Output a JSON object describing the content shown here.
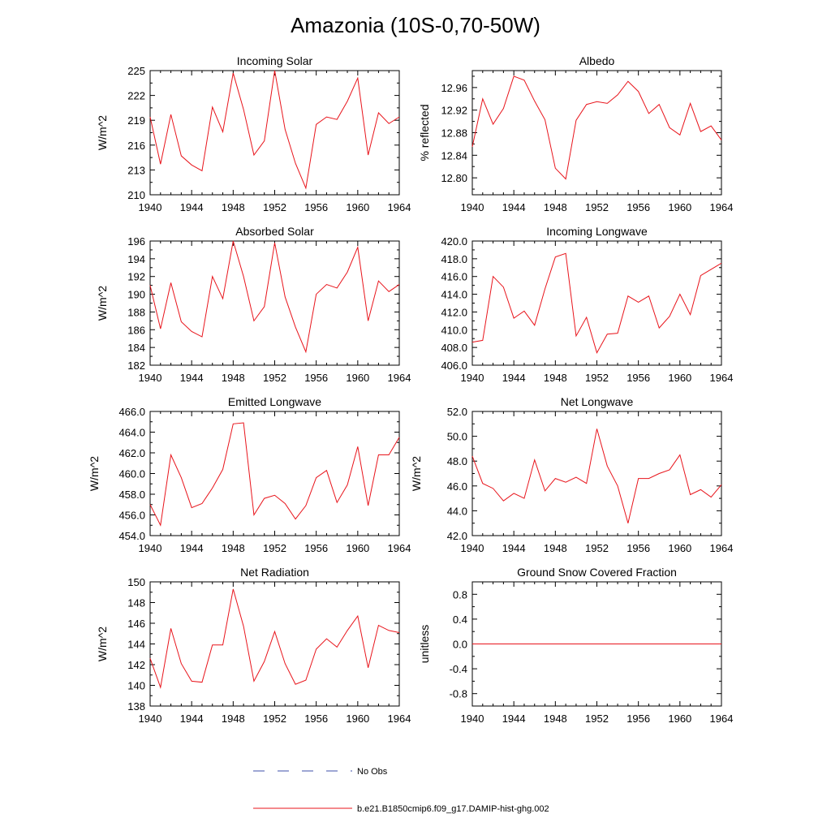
{
  "title": "Amazonia (10S-0,70-50W)",
  "colors": {
    "model": "#e8141b",
    "obs": "#3d4fa8",
    "axis": "#000000"
  },
  "legend": [
    {
      "label": "No Obs",
      "style": "dashed",
      "color": "#3d4fa8"
    },
    {
      "label": "b.e21.B1850cmip6.f09_g17.DAMIP-hist-ghg.002",
      "style": "solid",
      "color": "#e8141b"
    }
  ],
  "chart_data": [
    {
      "type": "line",
      "title": "Incoming Solar",
      "xlabel": "",
      "ylabel": "W/m^2",
      "xlim": [
        1940,
        1964
      ],
      "ylim": [
        210,
        225
      ],
      "xticks": [
        "1940",
        "1944",
        "1948",
        "1952",
        "1956",
        "1960",
        "1964"
      ],
      "yticks": [
        "210",
        "213",
        "216",
        "219",
        "222",
        "225"
      ],
      "x": [
        1940,
        1941,
        1942,
        1943,
        1944,
        1945,
        1946,
        1947,
        1948,
        1949,
        1950,
        1951,
        1952,
        1953,
        1954,
        1955,
        1956,
        1957,
        1958,
        1959,
        1960,
        1961,
        1962,
        1963,
        1964
      ],
      "series": [
        {
          "name": "b.e21.B1850cmip6.f09_g17.DAMIP-hist-ghg.002",
          "values": [
            219.4,
            213.7,
            219.7,
            214.7,
            213.6,
            212.9,
            220.6,
            217.6,
            224.7,
            220.3,
            214.8,
            216.5,
            225.0,
            217.9,
            213.8,
            210.8,
            218.5,
            219.4,
            219.1,
            221.3,
            224.1,
            214.8,
            219.9,
            218.6,
            219.4
          ]
        }
      ]
    },
    {
      "type": "line",
      "title": "Albedo",
      "xlabel": "",
      "ylabel": "% reflected",
      "xlim": [
        1940,
        1964
      ],
      "ylim": [
        12.77,
        12.99
      ],
      "xticks": [
        "1940",
        "1944",
        "1948",
        "1952",
        "1956",
        "1960",
        "1964"
      ],
      "yticks": [
        "12.80",
        "12.84",
        "12.88",
        "12.92",
        "12.96"
      ],
      "x": [
        1940,
        1941,
        1942,
        1943,
        1944,
        1945,
        1946,
        1947,
        1948,
        1949,
        1950,
        1951,
        1952,
        1953,
        1954,
        1955,
        1956,
        1957,
        1958,
        1959,
        1960,
        1961,
        1962,
        1963,
        1964
      ],
      "series": [
        {
          "name": "b.e21.B1850cmip6.f09_g17.DAMIP-hist-ghg.002",
          "values": [
            12.855,
            12.94,
            12.895,
            12.923,
            12.98,
            12.973,
            12.936,
            12.903,
            12.817,
            12.798,
            12.902,
            12.93,
            12.935,
            12.932,
            12.947,
            12.971,
            12.953,
            12.914,
            12.93,
            12.889,
            12.876,
            12.932,
            12.882,
            12.892,
            12.867
          ]
        }
      ]
    },
    {
      "type": "line",
      "title": "Absorbed Solar",
      "xlabel": "",
      "ylabel": "W/m^2",
      "xlim": [
        1940,
        1964
      ],
      "ylim": [
        182,
        196
      ],
      "xticks": [
        "1940",
        "1944",
        "1948",
        "1952",
        "1956",
        "1960",
        "1964"
      ],
      "yticks": [
        "182",
        "184",
        "186",
        "188",
        "190",
        "192",
        "194",
        "196"
      ],
      "x": [
        1940,
        1941,
        1942,
        1943,
        1944,
        1945,
        1946,
        1947,
        1948,
        1949,
        1950,
        1951,
        1952,
        1953,
        1954,
        1955,
        1956,
        1957,
        1958,
        1959,
        1960,
        1961,
        1962,
        1963,
        1964
      ],
      "series": [
        {
          "name": "b.e21.B1850cmip6.f09_g17.DAMIP-hist-ghg.002",
          "values": [
            191.0,
            186.1,
            191.3,
            186.9,
            185.8,
            185.2,
            192.0,
            189.5,
            196.0,
            192.0,
            187.0,
            188.6,
            195.8,
            189.7,
            186.3,
            183.5,
            190.0,
            191.1,
            190.7,
            192.5,
            195.3,
            187.0,
            191.5,
            190.3,
            191.1
          ]
        }
      ]
    },
    {
      "type": "line",
      "title": "Incoming Longwave",
      "xlabel": "",
      "ylabel": "",
      "xlim": [
        1940,
        1964
      ],
      "ylim": [
        406,
        420
      ],
      "xticks": [
        "1940",
        "1944",
        "1948",
        "1952",
        "1956",
        "1960",
        "1964"
      ],
      "yticks": [
        "406.0",
        "408.0",
        "410.0",
        "412.0",
        "414.0",
        "416.0",
        "418.0",
        "420.0"
      ],
      "x": [
        1940,
        1941,
        1942,
        1943,
        1944,
        1945,
        1946,
        1947,
        1948,
        1949,
        1950,
        1951,
        1952,
        1953,
        1954,
        1955,
        1956,
        1957,
        1958,
        1959,
        1960,
        1961,
        1962,
        1963,
        1964
      ],
      "series": [
        {
          "name": "b.e21.B1850cmip6.f09_g17.DAMIP-hist-ghg.002",
          "values": [
            408.6,
            408.8,
            416.0,
            414.8,
            411.3,
            412.1,
            410.5,
            414.6,
            418.2,
            418.6,
            409.3,
            411.4,
            407.4,
            409.5,
            409.6,
            413.8,
            413.1,
            413.8,
            410.2,
            411.5,
            414.0,
            411.7,
            416.1,
            416.8,
            417.5
          ]
        }
      ]
    },
    {
      "type": "line",
      "title": "Emitted Longwave",
      "xlabel": "",
      "ylabel": "W/m^2",
      "xlim": [
        1940,
        1964
      ],
      "ylim": [
        454,
        466
      ],
      "xticks": [
        "1940",
        "1944",
        "1948",
        "1952",
        "1956",
        "1960",
        "1964"
      ],
      "yticks": [
        "454.0",
        "456.0",
        "458.0",
        "460.0",
        "462.0",
        "464.0",
        "466.0"
      ],
      "x": [
        1940,
        1941,
        1942,
        1943,
        1944,
        1945,
        1946,
        1947,
        1948,
        1949,
        1950,
        1951,
        1952,
        1953,
        1954,
        1955,
        1956,
        1957,
        1958,
        1959,
        1960,
        1961,
        1962,
        1963,
        1964
      ],
      "series": [
        {
          "name": "b.e21.B1850cmip6.f09_g17.DAMIP-hist-ghg.002",
          "values": [
            457.0,
            455.0,
            461.8,
            459.6,
            456.7,
            457.1,
            458.6,
            460.4,
            464.8,
            464.9,
            456.0,
            457.6,
            457.9,
            457.1,
            455.6,
            456.9,
            459.6,
            460.3,
            457.2,
            458.9,
            462.6,
            456.9,
            461.8,
            461.8,
            463.5
          ]
        }
      ]
    },
    {
      "type": "line",
      "title": "Net Longwave",
      "xlabel": "",
      "ylabel": "W/m^2",
      "xlim": [
        1940,
        1964
      ],
      "ylim": [
        42,
        52
      ],
      "xticks": [
        "1940",
        "1944",
        "1948",
        "1952",
        "1956",
        "1960",
        "1964"
      ],
      "yticks": [
        "42.0",
        "44.0",
        "46.0",
        "48.0",
        "50.0",
        "52.0"
      ],
      "x": [
        1940,
        1941,
        1942,
        1943,
        1944,
        1945,
        1946,
        1947,
        1948,
        1949,
        1950,
        1951,
        1952,
        1953,
        1954,
        1955,
        1956,
        1957,
        1958,
        1959,
        1960,
        1961,
        1962,
        1963,
        1964
      ],
      "series": [
        {
          "name": "b.e21.B1850cmip6.f09_g17.DAMIP-hist-ghg.002",
          "values": [
            48.4,
            46.2,
            45.8,
            44.8,
            45.4,
            45.0,
            48.1,
            45.6,
            46.6,
            46.3,
            46.7,
            46.2,
            50.6,
            47.6,
            46.0,
            43.0,
            46.6,
            46.6,
            47.0,
            47.3,
            48.5,
            45.3,
            45.7,
            45.1,
            46.1
          ]
        }
      ]
    },
    {
      "type": "line",
      "title": "Net Radiation",
      "xlabel": "",
      "ylabel": "W/m^2",
      "xlim": [
        1940,
        1964
      ],
      "ylim": [
        138,
        150
      ],
      "xticks": [
        "1940",
        "1944",
        "1948",
        "1952",
        "1956",
        "1960",
        "1964"
      ],
      "yticks": [
        "138",
        "140",
        "142",
        "144",
        "146",
        "148",
        "150"
      ],
      "x": [
        1940,
        1941,
        1942,
        1943,
        1944,
        1945,
        1946,
        1947,
        1948,
        1949,
        1950,
        1951,
        1952,
        1953,
        1954,
        1955,
        1956,
        1957,
        1958,
        1959,
        1960,
        1961,
        1962,
        1963,
        1964
      ],
      "series": [
        {
          "name": "b.e21.B1850cmip6.f09_g17.DAMIP-hist-ghg.002",
          "values": [
            142.6,
            139.8,
            145.5,
            142.1,
            140.4,
            140.3,
            143.9,
            143.9,
            149.3,
            145.7,
            140.4,
            142.3,
            145.2,
            142.1,
            140.1,
            140.5,
            143.5,
            144.5,
            143.7,
            145.3,
            146.7,
            141.7,
            145.8,
            145.3,
            145.1
          ]
        }
      ]
    },
    {
      "type": "line",
      "title": "Ground Snow Covered Fraction",
      "xlabel": "",
      "ylabel": "unitless",
      "xlim": [
        1940,
        1964
      ],
      "ylim": [
        -1.0,
        1.0
      ],
      "xticks": [
        "1940",
        "1944",
        "1948",
        "1952",
        "1956",
        "1960",
        "1964"
      ],
      "yticks": [
        "-0.8",
        "-0.4",
        "0.0",
        "0.4",
        "0.8"
      ],
      "x": [
        1940,
        1941,
        1942,
        1943,
        1944,
        1945,
        1946,
        1947,
        1948,
        1949,
        1950,
        1951,
        1952,
        1953,
        1954,
        1955,
        1956,
        1957,
        1958,
        1959,
        1960,
        1961,
        1962,
        1963,
        1964
      ],
      "series": [
        {
          "name": "b.e21.B1850cmip6.f09_g17.DAMIP-hist-ghg.002",
          "values": [
            0,
            0,
            0,
            0,
            0,
            0,
            0,
            0,
            0,
            0,
            0,
            0,
            0,
            0,
            0,
            0,
            0,
            0,
            0,
            0,
            0,
            0,
            0,
            0,
            0
          ]
        }
      ]
    }
  ]
}
